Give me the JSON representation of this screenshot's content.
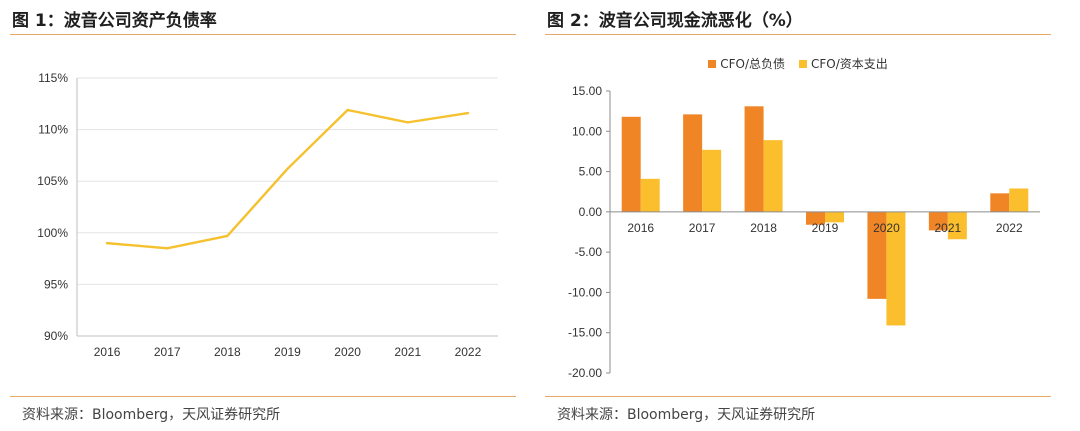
{
  "left_panel": {
    "title": "图 1：波音公司资产负债率",
    "source": "资料来源：Bloomberg，天风证券研究所"
  },
  "right_panel": {
    "title": "图 2：波音公司现金流恶化（%）",
    "source": "资料来源：Bloomberg，天风证券研究所"
  },
  "chart_data": [
    {
      "type": "line",
      "title": "",
      "xlabel": "",
      "ylabel": "",
      "x": [
        "2016",
        "2017",
        "2018",
        "2019",
        "2020",
        "2021",
        "2022"
      ],
      "values": [
        99.0,
        98.5,
        99.7,
        106.2,
        111.9,
        110.7,
        111.6
      ],
      "ylim": [
        90,
        115
      ],
      "yticks": [
        "90%",
        "95%",
        "100%",
        "105%",
        "110%",
        "115%"
      ],
      "ytick_values": [
        90,
        95,
        100,
        105,
        110,
        115
      ],
      "grid": true,
      "color": "#f5c12e"
    },
    {
      "type": "bar",
      "title": "",
      "xlabel": "",
      "ylabel": "",
      "categories": [
        "2016",
        "2017",
        "2018",
        "2019",
        "2020",
        "2021",
        "2022"
      ],
      "series": [
        {
          "name": "CFO/总负债",
          "color": "#f08526",
          "values": [
            11.8,
            12.1,
            13.1,
            -1.6,
            -10.8,
            -2.3,
            2.3
          ]
        },
        {
          "name": "CFO/资本支出",
          "color": "#fbbf2e",
          "values": [
            4.1,
            7.7,
            8.9,
            -1.3,
            -14.1,
            -3.4,
            2.9
          ]
        }
      ],
      "ylim": [
        -20,
        15
      ],
      "yticks": [
        "-20.00",
        "-15.00",
        "-10.00",
        "-5.00",
        "0.00",
        "5.00",
        "10.00",
        "15.00"
      ],
      "ytick_values": [
        -20,
        -15,
        -10,
        -5,
        0,
        5,
        10,
        15
      ],
      "grid": false,
      "legend_position": "top"
    }
  ]
}
